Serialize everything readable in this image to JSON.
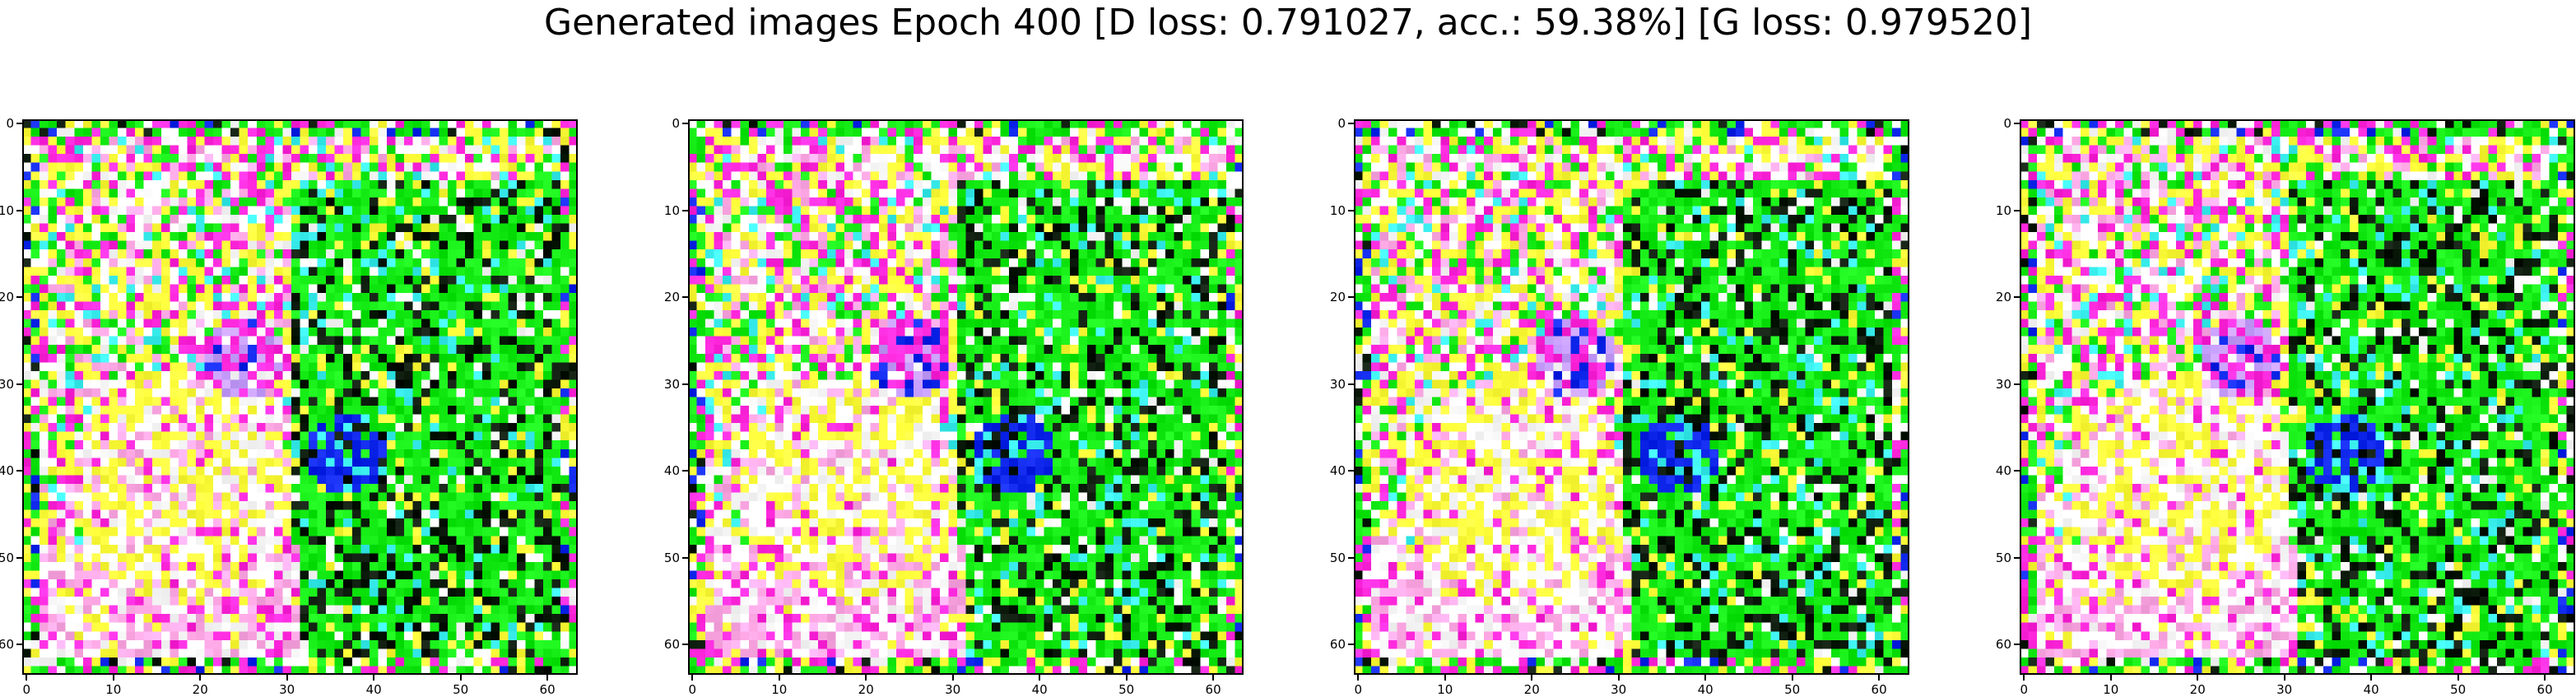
{
  "figure": {
    "suptitle": "Generated images Epoch 400 [D loss: 0.791027, acc.: 59.38%] [G loss: 0.979520]"
  },
  "chart_data": [
    {
      "type": "heatmap",
      "content": "generated-rgb-image",
      "xlim": [
        -0.5,
        63.5
      ],
      "ylim": [
        63.5,
        -0.5
      ],
      "xticks": [
        "0",
        "10",
        "20",
        "30",
        "40",
        "50",
        "60"
      ],
      "yticks": [
        "0",
        "10",
        "20",
        "30",
        "40",
        "50",
        "60"
      ],
      "grid": false
    },
    {
      "type": "heatmap",
      "content": "generated-rgb-image",
      "xlim": [
        -0.5,
        63.5
      ],
      "ylim": [
        63.5,
        -0.5
      ],
      "xticks": [
        "0",
        "10",
        "20",
        "30",
        "40",
        "50",
        "60"
      ],
      "yticks": [
        "0",
        "10",
        "20",
        "30",
        "40",
        "50",
        "60"
      ],
      "grid": false
    },
    {
      "type": "heatmap",
      "content": "generated-rgb-image",
      "xlim": [
        -0.5,
        63.5
      ],
      "ylim": [
        63.5,
        -0.5
      ],
      "xticks": [
        "0",
        "10",
        "20",
        "30",
        "40",
        "50",
        "60"
      ],
      "yticks": [
        "0",
        "10",
        "20",
        "30",
        "40",
        "50",
        "60"
      ],
      "grid": false
    },
    {
      "type": "heatmap",
      "content": "generated-rgb-image",
      "xlim": [
        -0.5,
        63.5
      ],
      "ylim": [
        63.5,
        -0.5
      ],
      "xticks": [
        "0",
        "10",
        "20",
        "30",
        "40",
        "50",
        "60"
      ],
      "yticks": [
        "0",
        "10",
        "20",
        "30",
        "40",
        "50",
        "60"
      ],
      "grid": false
    }
  ]
}
